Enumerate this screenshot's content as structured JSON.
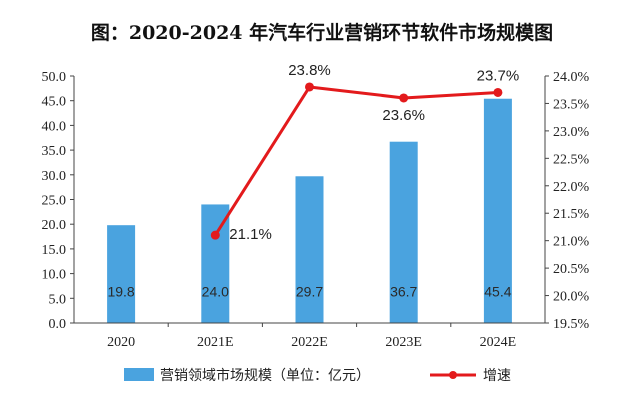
{
  "chart_data": {
    "type": "bar",
    "title": "图：2020-2024 年汽车行业营销环节软件市场规模图",
    "categories": [
      "2020",
      "2021E",
      "2022E",
      "2023E",
      "2024E"
    ],
    "series": [
      {
        "name": "营销领域市场规模（单位：亿元）",
        "type": "bar",
        "axis": "left",
        "values": [
          19.8,
          24.0,
          29.7,
          36.7,
          45.4
        ],
        "labels": [
          "19.8",
          "24.0",
          "29.7",
          "36.7",
          "45.4"
        ]
      },
      {
        "name": "增速",
        "type": "line",
        "axis": "right",
        "values": [
          null,
          21.1,
          23.8,
          23.6,
          23.7
        ],
        "labels": [
          null,
          "21.1%",
          "23.8%",
          "23.6%",
          "23.7%"
        ]
      }
    ],
    "y_left": {
      "range": [
        0,
        50
      ],
      "ticks": [
        "0.0",
        "5.0",
        "10.0",
        "15.0",
        "20.0",
        "25.0",
        "30.0",
        "35.0",
        "40.0",
        "45.0",
        "50.0"
      ]
    },
    "y_right": {
      "range": [
        19.5,
        24.0
      ],
      "ticks": [
        "19.5%",
        "20.0%",
        "20.5%",
        "21.0%",
        "21.5%",
        "22.0%",
        "22.5%",
        "23.0%",
        "23.5%",
        "24.0%"
      ]
    },
    "grid": false,
    "legend_position": "bottom",
    "colors": {
      "bar": "#4aa3df",
      "line": "#e31a1c"
    }
  }
}
